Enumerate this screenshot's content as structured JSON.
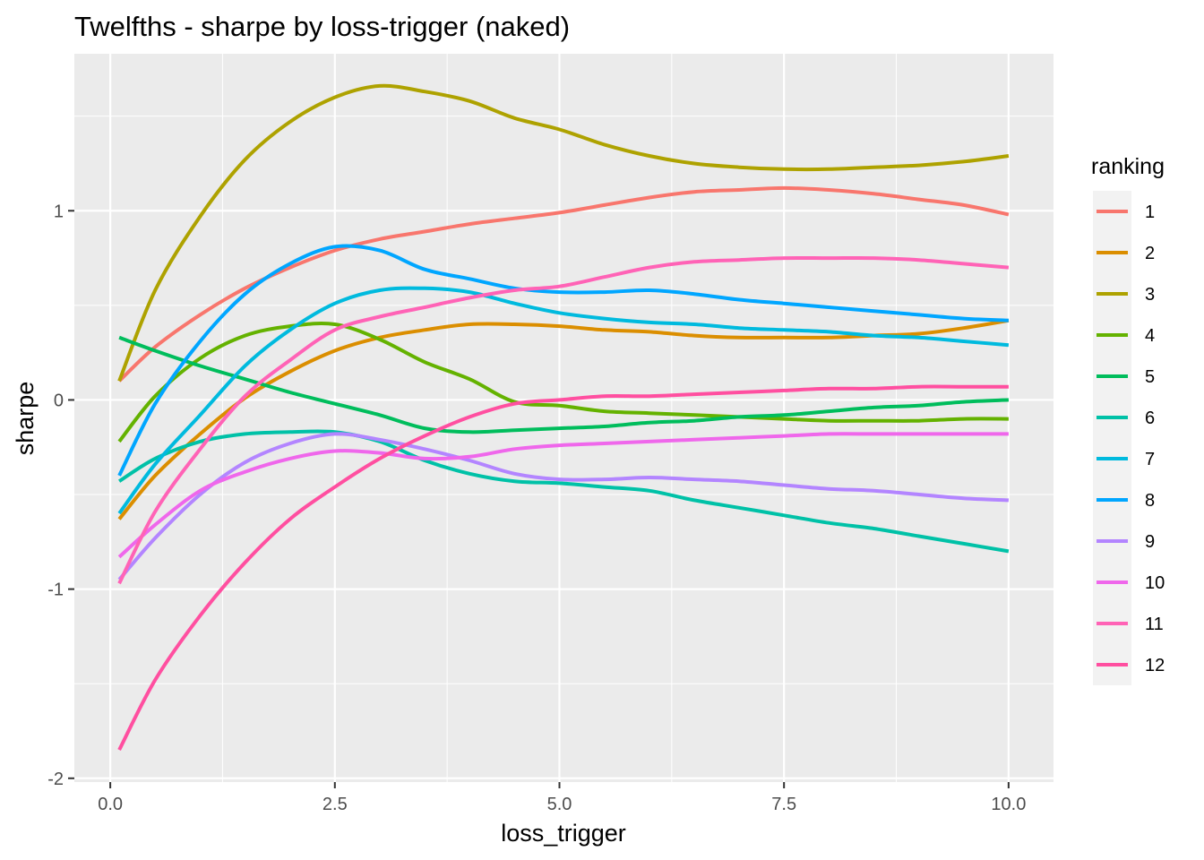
{
  "chart_data": {
    "type": "line",
    "title": "Twelfths - sharpe by loss-trigger (naked)",
    "xlabel": "loss_trigger",
    "ylabel": "sharpe",
    "xlim": [
      -0.4,
      10.5
    ],
    "ylim": [
      -2.02,
      1.83
    ],
    "x_ticks": [
      0.0,
      2.5,
      5.0,
      7.5,
      10.0
    ],
    "x_tick_labels": [
      "0.0",
      "2.5",
      "5.0",
      "7.5",
      "10.0"
    ],
    "y_ticks": [
      -2,
      -1,
      0,
      1
    ],
    "y_tick_labels": [
      "-2",
      "-1",
      "0",
      "1"
    ],
    "grid": true,
    "legend": {
      "title": "ranking",
      "position": "right"
    },
    "x": [
      0.1,
      0.5,
      1.0,
      1.5,
      2.0,
      2.5,
      3.0,
      3.5,
      4.0,
      4.5,
      5.0,
      5.5,
      6.0,
      6.5,
      7.0,
      7.5,
      8.0,
      8.5,
      9.0,
      9.5,
      10.0
    ],
    "series": [
      {
        "name": "1",
        "color": "#F8766D",
        "values": [
          0.1,
          0.28,
          0.45,
          0.59,
          0.7,
          0.79,
          0.85,
          0.89,
          0.93,
          0.96,
          0.99,
          1.03,
          1.07,
          1.1,
          1.11,
          1.12,
          1.11,
          1.09,
          1.06,
          1.03,
          0.98
        ]
      },
      {
        "name": "2",
        "color": "#DB8E00",
        "values": [
          -0.63,
          -0.4,
          -0.18,
          0.01,
          0.15,
          0.26,
          0.33,
          0.37,
          0.4,
          0.4,
          0.39,
          0.37,
          0.36,
          0.34,
          0.33,
          0.33,
          0.33,
          0.34,
          0.35,
          0.38,
          0.42
        ]
      },
      {
        "name": "3",
        "color": "#AEA200",
        "values": [
          0.1,
          0.58,
          0.97,
          1.27,
          1.47,
          1.6,
          1.66,
          1.63,
          1.58,
          1.49,
          1.43,
          1.35,
          1.29,
          1.25,
          1.23,
          1.22,
          1.22,
          1.23,
          1.24,
          1.26,
          1.29
        ]
      },
      {
        "name": "4",
        "color": "#64B200",
        "values": [
          -0.22,
          0.02,
          0.22,
          0.34,
          0.39,
          0.4,
          0.32,
          0.2,
          0.11,
          -0.01,
          -0.03,
          -0.06,
          -0.07,
          -0.08,
          -0.09,
          -0.1,
          -0.11,
          -0.11,
          -0.11,
          -0.1,
          -0.1
        ]
      },
      {
        "name": "5",
        "color": "#00BD5C",
        "values": [
          0.33,
          0.26,
          0.18,
          0.11,
          0.04,
          -0.02,
          -0.08,
          -0.15,
          -0.17,
          -0.16,
          -0.15,
          -0.14,
          -0.12,
          -0.11,
          -0.09,
          -0.08,
          -0.06,
          -0.04,
          -0.03,
          -0.01,
          0.0
        ]
      },
      {
        "name": "6",
        "color": "#00C1A7",
        "values": [
          -0.43,
          -0.31,
          -0.22,
          -0.18,
          -0.17,
          -0.17,
          -0.22,
          -0.32,
          -0.39,
          -0.43,
          -0.44,
          -0.46,
          -0.48,
          -0.53,
          -0.57,
          -0.61,
          -0.65,
          -0.68,
          -0.72,
          -0.76,
          -0.8
        ]
      },
      {
        "name": "7",
        "color": "#00BADE",
        "values": [
          -0.6,
          -0.34,
          -0.08,
          0.18,
          0.37,
          0.51,
          0.58,
          0.59,
          0.57,
          0.51,
          0.46,
          0.43,
          0.41,
          0.4,
          0.38,
          0.37,
          0.36,
          0.34,
          0.33,
          0.31,
          0.29
        ]
      },
      {
        "name": "8",
        "color": "#00A6FF",
        "values": [
          -0.4,
          -0.02,
          0.31,
          0.56,
          0.72,
          0.81,
          0.79,
          0.69,
          0.64,
          0.59,
          0.57,
          0.57,
          0.58,
          0.56,
          0.53,
          0.51,
          0.49,
          0.47,
          0.45,
          0.43,
          0.42
        ]
      },
      {
        "name": "9",
        "color": "#B385FF",
        "values": [
          -0.95,
          -0.73,
          -0.5,
          -0.33,
          -0.23,
          -0.18,
          -0.21,
          -0.26,
          -0.32,
          -0.39,
          -0.42,
          -0.42,
          -0.41,
          -0.42,
          -0.43,
          -0.45,
          -0.47,
          -0.48,
          -0.5,
          -0.52,
          -0.53
        ]
      },
      {
        "name": "10",
        "color": "#EF67EB",
        "values": [
          -0.83,
          -0.66,
          -0.48,
          -0.38,
          -0.31,
          -0.27,
          -0.28,
          -0.31,
          -0.3,
          -0.26,
          -0.24,
          -0.23,
          -0.22,
          -0.21,
          -0.2,
          -0.19,
          -0.18,
          -0.18,
          -0.18,
          -0.18,
          -0.18
        ]
      },
      {
        "name": "11",
        "color": "#FF63B6",
        "values": [
          -0.97,
          -0.59,
          -0.26,
          0.02,
          0.21,
          0.37,
          0.44,
          0.49,
          0.54,
          0.58,
          0.6,
          0.65,
          0.7,
          0.73,
          0.74,
          0.75,
          0.75,
          0.75,
          0.74,
          0.72,
          0.7
        ]
      },
      {
        "name": "12",
        "color": "#FF4FA0",
        "values": [
          -1.85,
          -1.48,
          -1.14,
          -0.86,
          -0.63,
          -0.46,
          -0.31,
          -0.19,
          -0.09,
          -0.02,
          0.0,
          0.02,
          0.02,
          0.03,
          0.04,
          0.05,
          0.06,
          0.06,
          0.07,
          0.07,
          0.07
        ]
      }
    ]
  }
}
